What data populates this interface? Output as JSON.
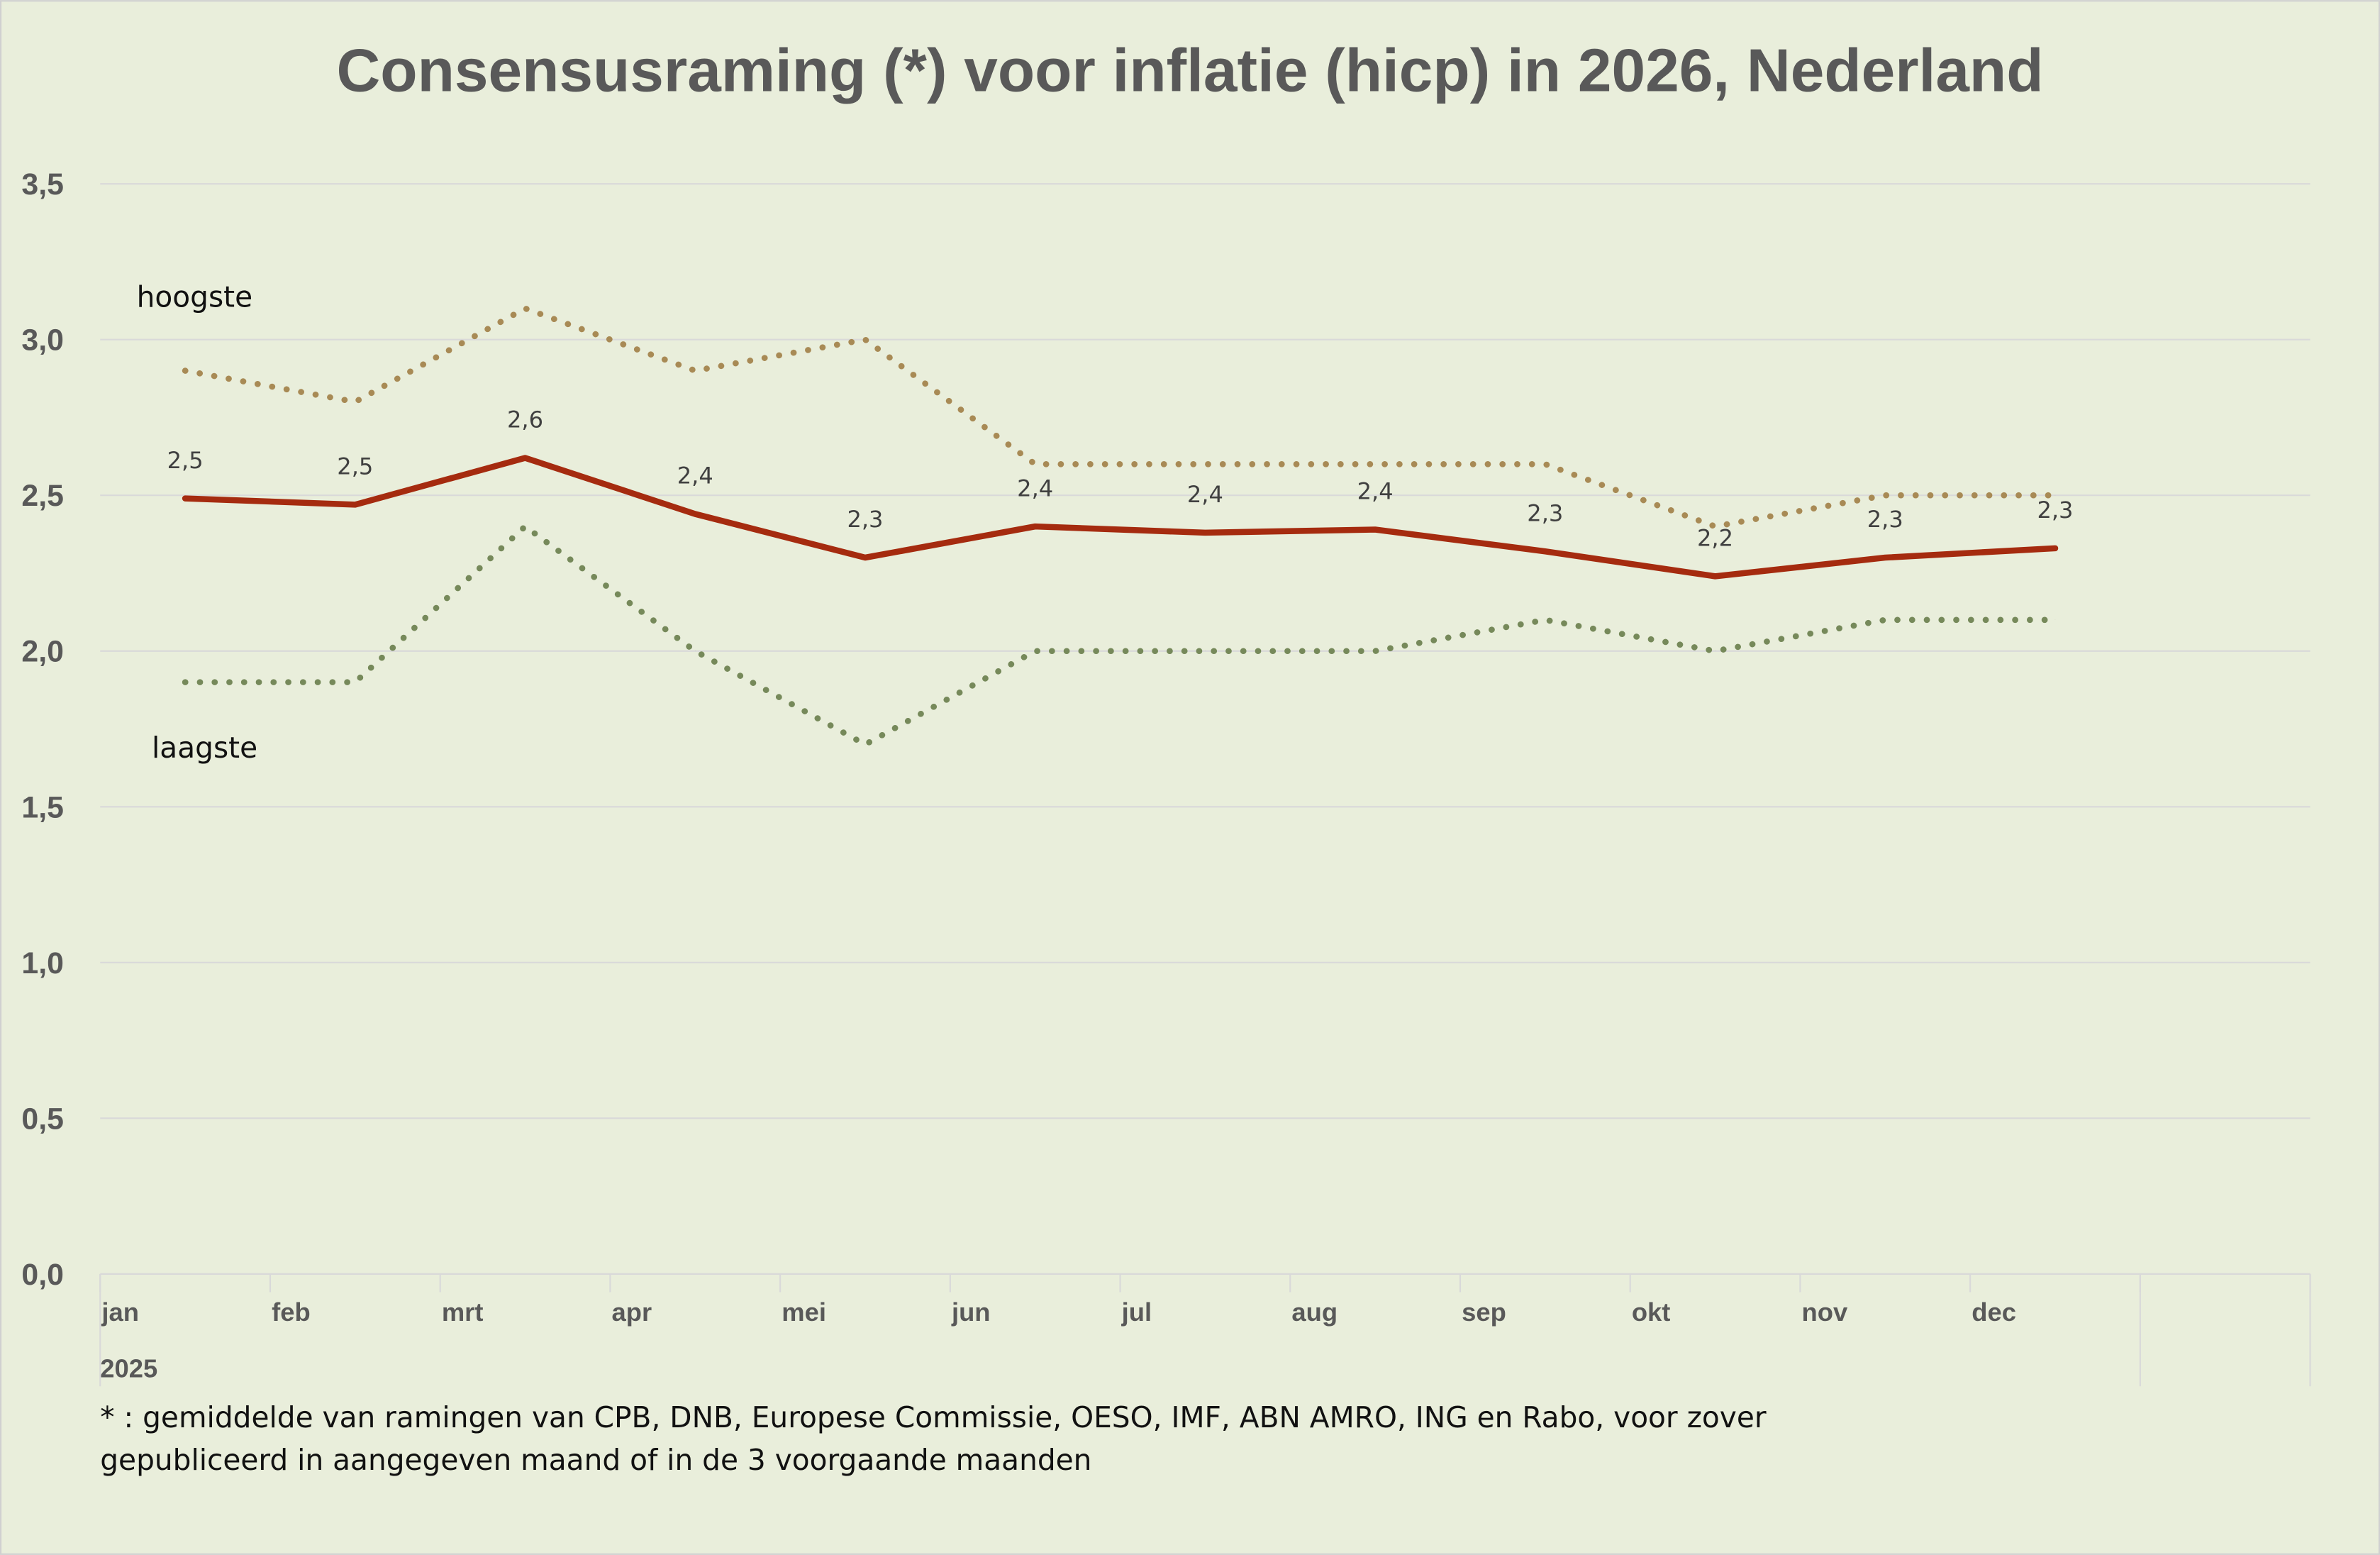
{
  "chart_data": {
    "type": "line",
    "title": "Consensusraming (*) voor inflatie (hicp) in 2026, Nederland",
    "xlabel": "",
    "ylabel": "",
    "ylim": [
      0,
      3.5
    ],
    "yticks": [
      0,
      0.5,
      1.0,
      1.5,
      2.0,
      2.5,
      3.0,
      3.5
    ],
    "ytick_labels": [
      "0,0",
      "0,5",
      "1,0",
      "1,5",
      "2,0",
      "2,5",
      "3,0",
      "3,5"
    ],
    "grid": true,
    "categories": [
      "jan",
      "feb",
      "mrt",
      "apr",
      "mei",
      "jun",
      "jul",
      "aug",
      "sep",
      "okt",
      "nov",
      "dec"
    ],
    "category_group": "2025",
    "series": [
      {
        "name": "gemiddelde",
        "color": "#a52b0f",
        "style": "solid",
        "values": [
          2.49,
          2.47,
          2.62,
          2.44,
          2.3,
          2.4,
          2.38,
          2.39,
          2.32,
          2.24,
          2.3,
          2.33
        ],
        "data_labels": [
          "2,5",
          "2,5",
          "2,6",
          "2,4",
          "2,3",
          "2,4",
          "2,4",
          "2,4",
          "2,3",
          "2,2",
          "2,3",
          "2,3"
        ]
      },
      {
        "name": "hoogste",
        "color": "#a88a55",
        "style": "dotted",
        "values": [
          2.9,
          2.8,
          3.1,
          2.9,
          3.0,
          2.6,
          2.6,
          2.6,
          2.6,
          2.4,
          2.5,
          2.5
        ]
      },
      {
        "name": "laagste",
        "color": "#76895a",
        "style": "dotted",
        "values": [
          1.9,
          1.9,
          2.4,
          2.0,
          1.7,
          2.0,
          2.0,
          2.0,
          2.1,
          2.0,
          2.1,
          2.1
        ]
      }
    ],
    "annotations": {
      "high": "hoogste",
      "low": "laagste"
    },
    "footnote": [
      "* : gemiddelde van ramingen van CPB, DNB, Europese Commissie, OESO, IMF, ABN AMRO, ING en Rabo, voor zover",
      "gepubliceerd in aangegeven maand of in de 3 voorgaande maanden"
    ],
    "colors": {
      "background": "#e9eedb",
      "grid": "#d9d9d9"
    }
  }
}
